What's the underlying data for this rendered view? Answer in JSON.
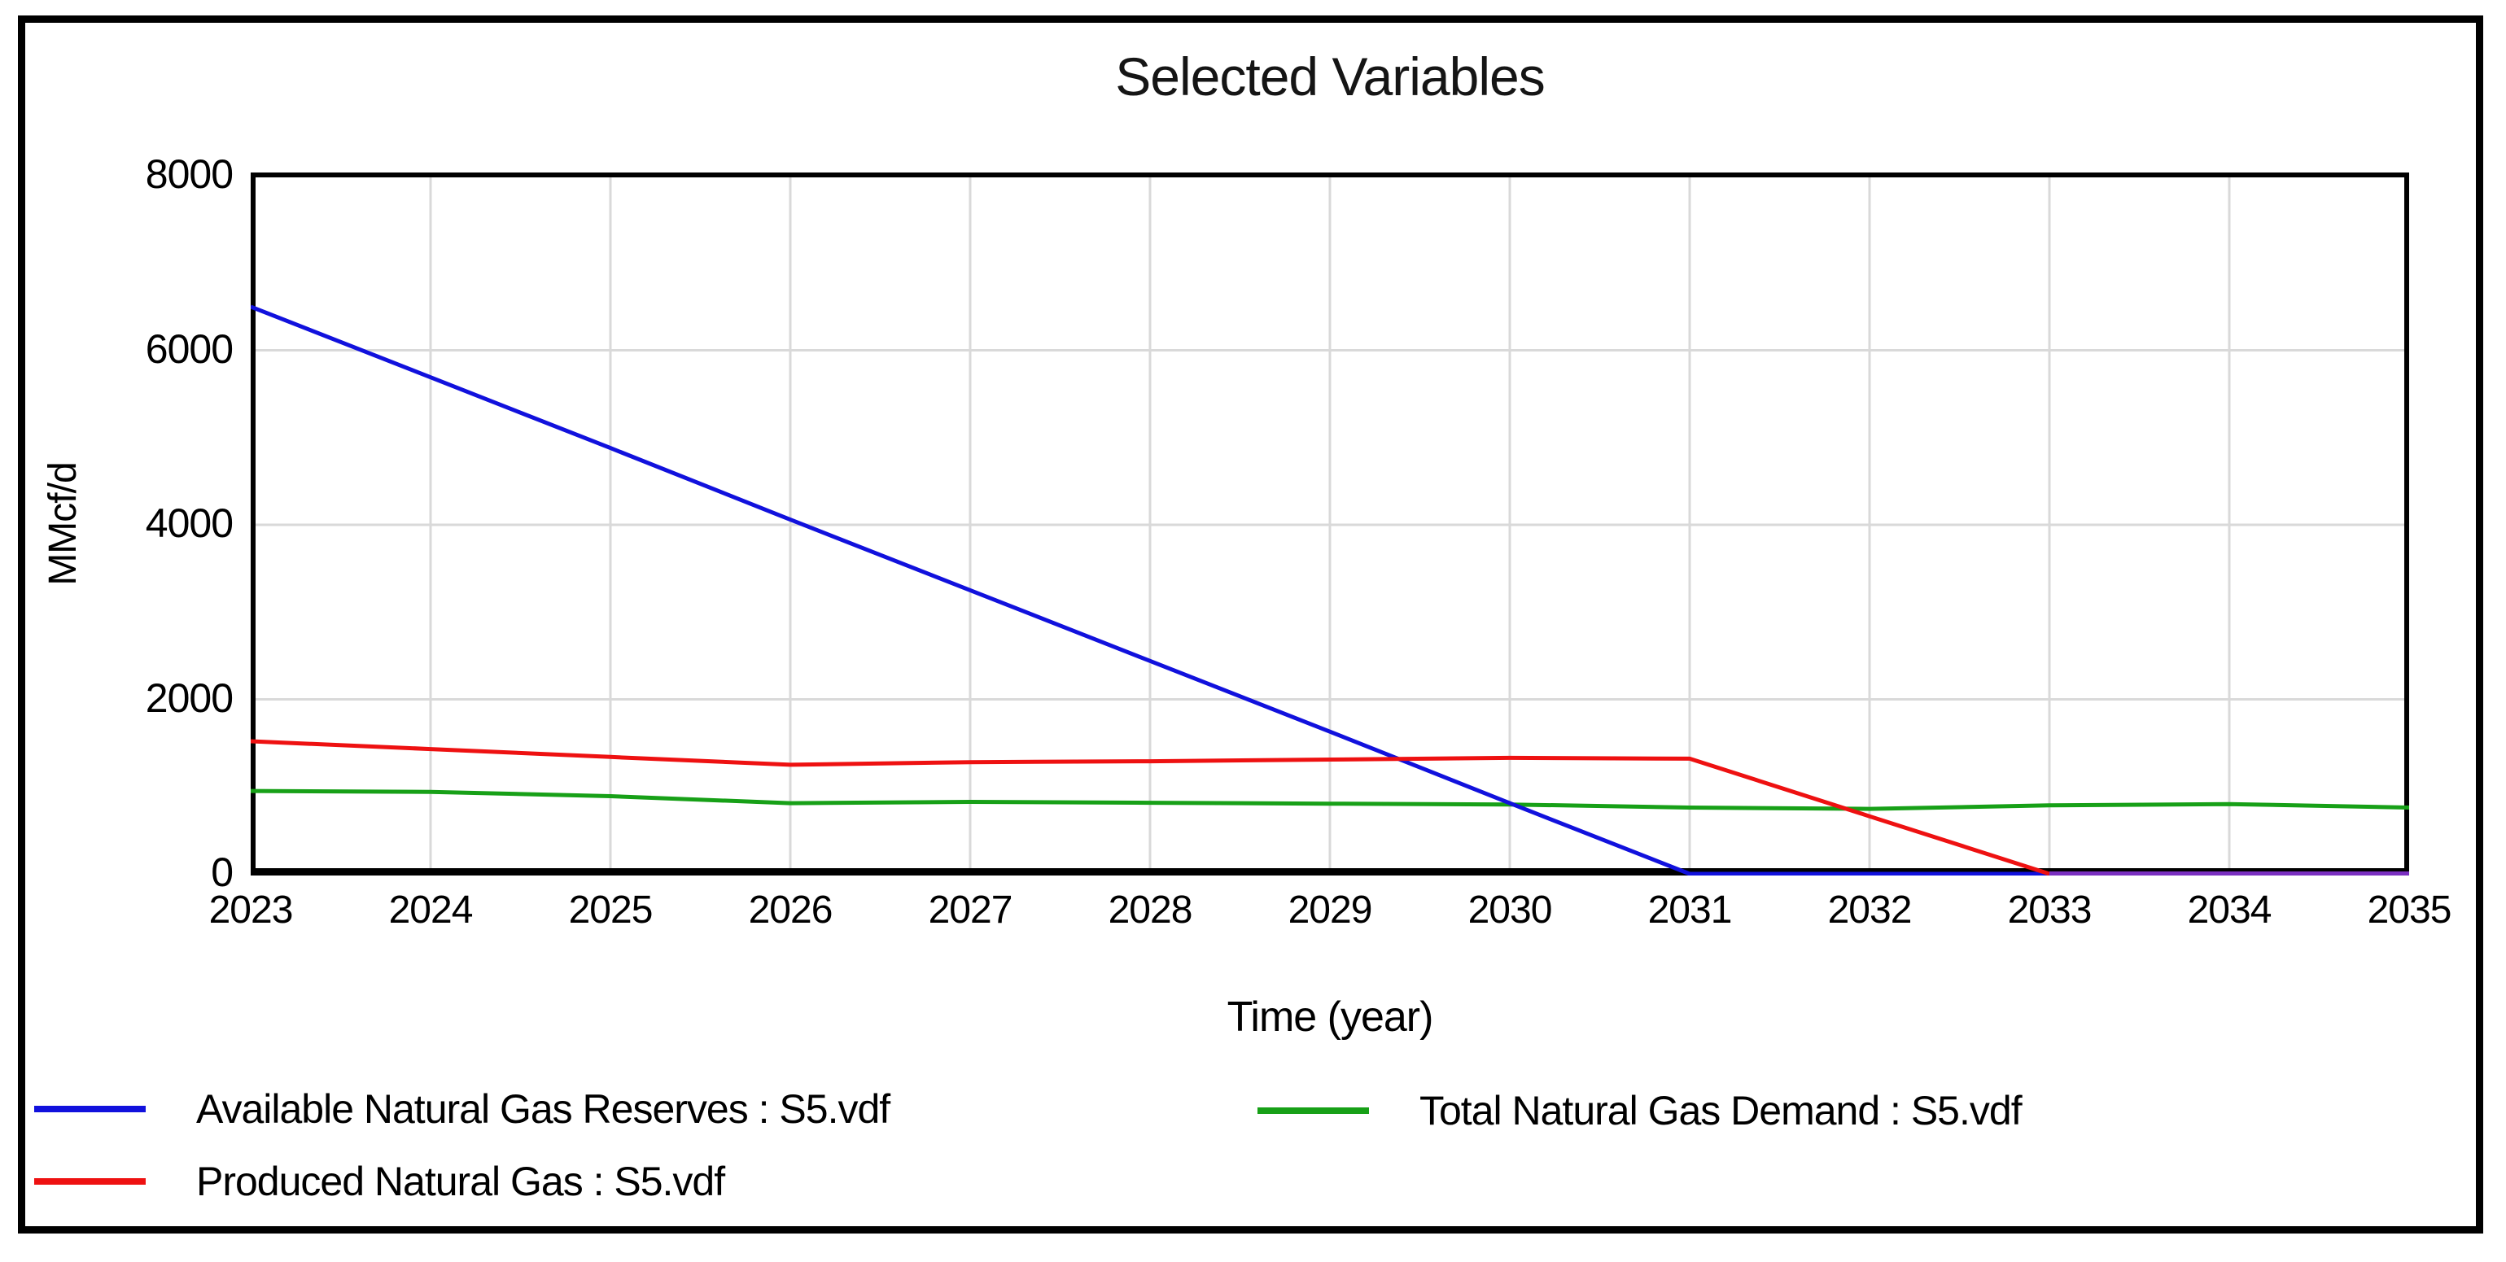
{
  "title": "Selected Variables",
  "y_axis": {
    "label": "MMcf/d",
    "ticks": [
      "8000",
      "6000",
      "4000",
      "2000",
      "0"
    ]
  },
  "x_axis": {
    "label": "Time (year)",
    "ticks": [
      "2023",
      "2024",
      "2025",
      "2026",
      "2027",
      "2028",
      "2029",
      "2030",
      "2031",
      "2032",
      "2033",
      "2034",
      "2035"
    ]
  },
  "legend": {
    "items": [
      {
        "label": "Available Natural Gas Reserves : S5.vdf",
        "color": "#1111dd"
      },
      {
        "label": "Produced Natural Gas : S5.vdf",
        "color": "#ee1111"
      },
      {
        "label": "Total Natural Gas Demand : S5.vdf",
        "color": "#17a017"
      }
    ]
  },
  "colors": {
    "grid": "#d9d9d9",
    "axis": "#000000",
    "overlap_purple": "#7a2fc0"
  },
  "chart_data": {
    "type": "line",
    "title": "Selected Variables",
    "xlabel": "Time (year)",
    "ylabel": "MMcf/d",
    "x": [
      2023,
      2024,
      2025,
      2026,
      2027,
      2028,
      2029,
      2030,
      2031,
      2032,
      2033,
      2034,
      2035
    ],
    "xlim": [
      2023,
      2035
    ],
    "ylim": [
      0,
      8000
    ],
    "y_ticks": [
      0,
      2000,
      4000,
      6000,
      8000
    ],
    "grid": true,
    "legend_position": "bottom-left-two-columns",
    "series": [
      {
        "name": "Available Natural Gas Reserves : S5.vdf",
        "color": "#1111dd",
        "values": [
          6500,
          5690,
          4880,
          4060,
          3250,
          2440,
          1630,
          810,
          0,
          0,
          0,
          0,
          0
        ]
      },
      {
        "name": "Produced Natural Gas : S5.vdf",
        "color": "#ee1111",
        "values": [
          1520,
          1430,
          1340,
          1250,
          1280,
          1290,
          1310,
          1330,
          1320,
          660,
          0,
          0,
          0
        ]
      },
      {
        "name": "Total Natural Gas Demand : S5.vdf",
        "color": "#17a017",
        "values": [
          950,
          940,
          890,
          810,
          825,
          815,
          805,
          795,
          760,
          745,
          785,
          800,
          760
        ]
      }
    ],
    "render_hints": {
      "produced_drawn_until": 2033,
      "overlap_segment": {
        "from": 2033,
        "to": 2035,
        "value": 0,
        "color": "#7a2fc0",
        "note": "Reserves and Produced lines coincide at 0 and appear purple"
      }
    }
  }
}
